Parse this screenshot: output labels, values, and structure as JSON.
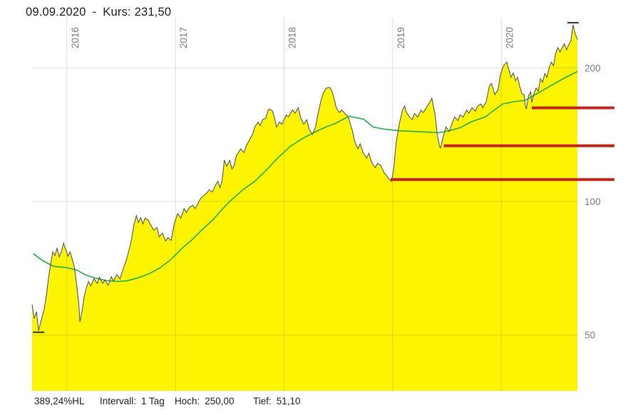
{
  "header": {
    "date": "09.09.2020",
    "dash": "-",
    "kurs_label": "Kurs:",
    "kurs_value": "231,50"
  },
  "statusbar": {
    "range_pct": "389,24%HL",
    "interval_label": "Intervall:",
    "interval_value": "1 Tag",
    "high_label": "Hoch:",
    "high_value": "250,00",
    "low_label": "Tief:",
    "low_value": "51,10"
  },
  "colors": {
    "background": "#ffffff",
    "area_fill": "#fcf400",
    "price_line": "#4d4d4d",
    "ma_line": "#2bad4d",
    "support_line": "#c1271f",
    "grid": "rgba(0,0,0,0.13)",
    "axis_text": "#7f7f7f",
    "heading_text": "#21242e",
    "marker_tick": "#333333"
  },
  "chart_data": {
    "type": "area",
    "title": "09.09.2020 - Kurs: 231,50",
    "xlabel": "",
    "ylabel": "",
    "grid": true,
    "legend": "none",
    "x_axis": {
      "scale": "linear-time-years",
      "range": [
        2015.68,
        2020.7
      ],
      "ticks": [
        2016,
        2017,
        2018,
        2019,
        2020
      ],
      "tick_labels": [
        "2016",
        "2017",
        "2018",
        "2019",
        "2020"
      ]
    },
    "y_axis": {
      "scale": "log",
      "side": "right",
      "range": [
        37,
        262
      ],
      "ticks": [
        200,
        100,
        50
      ],
      "tick_labels": [
        "200",
        "100",
        "50"
      ]
    },
    "series": [
      {
        "name": "price",
        "type": "area",
        "points": [
          [
            2015.68,
            58.6
          ],
          [
            2015.7,
            54.5
          ],
          [
            2015.72,
            56.5
          ],
          [
            2015.74,
            51.1
          ],
          [
            2015.76,
            53.5
          ],
          [
            2015.79,
            57.0
          ],
          [
            2015.81,
            61.0
          ],
          [
            2015.83,
            67.0
          ],
          [
            2015.85,
            72.0
          ],
          [
            2015.87,
            77.0
          ],
          [
            2015.89,
            75.5
          ],
          [
            2015.91,
            78.4
          ],
          [
            2015.93,
            75.0
          ],
          [
            2015.95,
            77.0
          ],
          [
            2015.97,
            80.5
          ],
          [
            2015.99,
            78.0
          ],
          [
            2016.01,
            75.3
          ],
          [
            2016.03,
            77.0
          ],
          [
            2016.05,
            74.0
          ],
          [
            2016.07,
            71.0
          ],
          [
            2016.09,
            65.0
          ],
          [
            2016.11,
            59.0
          ],
          [
            2016.12,
            53.5
          ],
          [
            2016.14,
            56.6
          ],
          [
            2016.16,
            61.0
          ],
          [
            2016.18,
            64.0
          ],
          [
            2016.2,
            66.0
          ],
          [
            2016.22,
            64.5
          ],
          [
            2016.25,
            67.0
          ],
          [
            2016.28,
            65.4
          ],
          [
            2016.3,
            67.5
          ],
          [
            2016.33,
            65.4
          ],
          [
            2016.35,
            66.6
          ],
          [
            2016.38,
            64.7
          ],
          [
            2016.41,
            67.7
          ],
          [
            2016.43,
            66.2
          ],
          [
            2016.46,
            68.4
          ],
          [
            2016.49,
            66.9
          ],
          [
            2016.51,
            69.5
          ],
          [
            2016.54,
            72.9
          ],
          [
            2016.56,
            75.7
          ],
          [
            2016.59,
            80.8
          ],
          [
            2016.62,
            89.0
          ],
          [
            2016.64,
            93.0
          ],
          [
            2016.66,
            89.6
          ],
          [
            2016.68,
            92.0
          ],
          [
            2016.7,
            89.0
          ],
          [
            2016.72,
            91.7
          ],
          [
            2016.75,
            90.7
          ],
          [
            2016.77,
            88.7
          ],
          [
            2016.8,
            86.1
          ],
          [
            2016.83,
            87.4
          ],
          [
            2016.85,
            83.2
          ],
          [
            2016.88,
            84.8
          ],
          [
            2016.91,
            81.4
          ],
          [
            2016.93,
            82.9
          ],
          [
            2016.96,
            81.7
          ],
          [
            2016.99,
            89.3
          ],
          [
            2017.02,
            93.9
          ],
          [
            2017.05,
            91.7
          ],
          [
            2017.08,
            96.3
          ],
          [
            2017.1,
            94.5
          ],
          [
            2017.13,
            97.0
          ],
          [
            2017.16,
            98.1
          ],
          [
            2017.18,
            96.3
          ],
          [
            2017.21,
            99.2
          ],
          [
            2017.23,
            101.5
          ],
          [
            2017.26,
            103.0
          ],
          [
            2017.29,
            104.6
          ],
          [
            2017.31,
            106.2
          ],
          [
            2017.34,
            105.0
          ],
          [
            2017.37,
            109.0
          ],
          [
            2017.39,
            111.0
          ],
          [
            2017.41,
            107.4
          ],
          [
            2017.43,
            111.9
          ],
          [
            2017.45,
            124.0
          ],
          [
            2017.47,
            120.1
          ],
          [
            2017.5,
            123.8
          ],
          [
            2017.52,
            118.3
          ],
          [
            2017.54,
            120.6
          ],
          [
            2017.56,
            126.6
          ],
          [
            2017.58,
            128.9
          ],
          [
            2017.6,
            131.4
          ],
          [
            2017.63,
            128.9
          ],
          [
            2017.65,
            133.3
          ],
          [
            2017.67,
            135.9
          ],
          [
            2017.69,
            139.0
          ],
          [
            2017.71,
            141.6
          ],
          [
            2017.73,
            147.1
          ],
          [
            2017.76,
            151.0
          ],
          [
            2017.78,
            148.2
          ],
          [
            2017.8,
            152.8
          ],
          [
            2017.83,
            153.8
          ],
          [
            2017.85,
            159.7
          ],
          [
            2017.86,
            161.5
          ],
          [
            2017.89,
            160.3
          ],
          [
            2017.91,
            155.0
          ],
          [
            2017.93,
            147.1
          ],
          [
            2017.96,
            151.0
          ],
          [
            2017.98,
            149.3
          ],
          [
            2018.0,
            152.8
          ],
          [
            2018.02,
            156.7
          ],
          [
            2018.04,
            155.0
          ],
          [
            2018.06,
            158.5
          ],
          [
            2018.08,
            160.8
          ],
          [
            2018.1,
            157.9
          ],
          [
            2018.13,
            162.7
          ],
          [
            2018.15,
            155.0
          ],
          [
            2018.18,
            149.3
          ],
          [
            2018.21,
            152.8
          ],
          [
            2018.23,
            145.4
          ],
          [
            2018.26,
            141.6
          ],
          [
            2018.29,
            147.1
          ],
          [
            2018.31,
            156.7
          ],
          [
            2018.34,
            169.0
          ],
          [
            2018.36,
            175.4
          ],
          [
            2018.39,
            180.1
          ],
          [
            2018.42,
            180.7
          ],
          [
            2018.44,
            177.4
          ],
          [
            2018.46,
            170.9
          ],
          [
            2018.48,
            162.7
          ],
          [
            2018.51,
            158.5
          ],
          [
            2018.53,
            160.8
          ],
          [
            2018.56,
            157.9
          ],
          [
            2018.59,
            155.0
          ],
          [
            2018.6,
            152.1
          ],
          [
            2018.63,
            143.8
          ],
          [
            2018.65,
            136.5
          ],
          [
            2018.68,
            131.4
          ],
          [
            2018.7,
            134.9
          ],
          [
            2018.73,
            128.4
          ],
          [
            2018.76,
            125.2
          ],
          [
            2018.78,
            128.4
          ],
          [
            2018.81,
            121.9
          ],
          [
            2018.84,
            119.2
          ],
          [
            2018.86,
            121.9
          ],
          [
            2018.89,
            120.6
          ],
          [
            2018.92,
            116.1
          ],
          [
            2018.94,
            114.8
          ],
          [
            2018.97,
            111.9
          ],
          [
            2018.99,
            111.0
          ],
          [
            2019.01,
            119.2
          ],
          [
            2019.03,
            134.9
          ],
          [
            2019.06,
            149.3
          ],
          [
            2019.09,
            160.8
          ],
          [
            2019.11,
            164.2
          ],
          [
            2019.12,
            159.7
          ],
          [
            2019.15,
            155.6
          ],
          [
            2019.18,
            152.8
          ],
          [
            2019.2,
            157.9
          ],
          [
            2019.23,
            155.0
          ],
          [
            2019.26,
            160.8
          ],
          [
            2019.28,
            158.5
          ],
          [
            2019.31,
            162.7
          ],
          [
            2019.34,
            167.1
          ],
          [
            2019.36,
            170.9
          ],
          [
            2019.39,
            156.7
          ],
          [
            2019.41,
            141.6
          ],
          [
            2019.43,
            133.3
          ],
          [
            2019.44,
            131.9
          ],
          [
            2019.47,
            141.6
          ],
          [
            2019.49,
            147.1
          ],
          [
            2019.52,
            143.8
          ],
          [
            2019.55,
            151.0
          ],
          [
            2019.57,
            155.0
          ],
          [
            2019.6,
            152.1
          ],
          [
            2019.62,
            156.7
          ],
          [
            2019.65,
            155.0
          ],
          [
            2019.68,
            160.8
          ],
          [
            2019.7,
            157.9
          ],
          [
            2019.73,
            162.7
          ],
          [
            2019.76,
            159.7
          ],
          [
            2019.78,
            163.9
          ],
          [
            2019.81,
            165.8
          ],
          [
            2019.83,
            162.7
          ],
          [
            2019.86,
            167.7
          ],
          [
            2019.89,
            182.1
          ],
          [
            2019.91,
            184.4
          ],
          [
            2019.94,
            174.0
          ],
          [
            2019.97,
            178.7
          ],
          [
            2019.99,
            192.6
          ],
          [
            2020.02,
            202.3
          ],
          [
            2020.05,
            206.1
          ],
          [
            2020.07,
            197.7
          ],
          [
            2020.09,
            190.5
          ],
          [
            2020.11,
            194.8
          ],
          [
            2020.13,
            187.0
          ],
          [
            2020.15,
            190.5
          ],
          [
            2020.17,
            181.4
          ],
          [
            2020.19,
            174.7
          ],
          [
            2020.21,
            174.0
          ],
          [
            2020.22,
            164.2
          ],
          [
            2020.23,
            161.5
          ],
          [
            2020.25,
            172.7
          ],
          [
            2020.27,
            176.7
          ],
          [
            2020.28,
            167.1
          ],
          [
            2020.3,
            174.7
          ],
          [
            2020.32,
            180.1
          ],
          [
            2020.34,
            177.4
          ],
          [
            2020.36,
            189.1
          ],
          [
            2020.38,
            185.6
          ],
          [
            2020.4,
            194.1
          ],
          [
            2020.42,
            190.5
          ],
          [
            2020.44,
            200.0
          ],
          [
            2020.46,
            206.1
          ],
          [
            2020.48,
            202.3
          ],
          [
            2020.5,
            215.5
          ],
          [
            2020.52,
            222.1
          ],
          [
            2020.54,
            217.2
          ],
          [
            2020.56,
            222.1
          ],
          [
            2020.58,
            226.4
          ],
          [
            2020.6,
            219.6
          ],
          [
            2020.62,
            225.5
          ],
          [
            2020.64,
            229.8
          ],
          [
            2020.66,
            250.0
          ],
          [
            2020.68,
            238.7
          ],
          [
            2020.7,
            231.5
          ]
        ]
      },
      {
        "name": "moving-average",
        "type": "line",
        "points": [
          [
            2015.69,
            76.3
          ],
          [
            2015.78,
            73.5
          ],
          [
            2015.88,
            71.4
          ],
          [
            2016.0,
            70.9
          ],
          [
            2016.09,
            70.1
          ],
          [
            2016.17,
            68.3
          ],
          [
            2016.27,
            67.1
          ],
          [
            2016.37,
            66.3
          ],
          [
            2016.47,
            66.0
          ],
          [
            2016.56,
            66.3
          ],
          [
            2016.66,
            67.3
          ],
          [
            2016.76,
            68.8
          ],
          [
            2016.86,
            70.9
          ],
          [
            2016.96,
            74.1
          ],
          [
            2017.06,
            78.4
          ],
          [
            2017.16,
            82.3
          ],
          [
            2017.24,
            86.1
          ],
          [
            2017.34,
            90.7
          ],
          [
            2017.43,
            96.0
          ],
          [
            2017.5,
            100.0
          ],
          [
            2017.62,
            106.2
          ],
          [
            2017.73,
            111.0
          ],
          [
            2017.83,
            117.2
          ],
          [
            2017.94,
            125.2
          ],
          [
            2018.06,
            133.3
          ],
          [
            2018.17,
            138.7
          ],
          [
            2018.27,
            142.8
          ],
          [
            2018.37,
            146.6
          ],
          [
            2018.47,
            149.9
          ],
          [
            2018.6,
            155.6
          ],
          [
            2018.73,
            153.3
          ],
          [
            2018.82,
            147.1
          ],
          [
            2018.93,
            145.4
          ],
          [
            2019.06,
            144.3
          ],
          [
            2019.19,
            143.8
          ],
          [
            2019.32,
            143.3
          ],
          [
            2019.42,
            142.8
          ],
          [
            2019.52,
            144.3
          ],
          [
            2019.62,
            146.6
          ],
          [
            2019.72,
            151.0
          ],
          [
            2019.85,
            155.0
          ],
          [
            2020.01,
            165.8
          ],
          [
            2020.11,
            167.7
          ],
          [
            2020.22,
            169.0
          ],
          [
            2020.37,
            177.4
          ],
          [
            2020.57,
            189.1
          ],
          [
            2020.7,
            196.3
          ]
        ]
      }
    ],
    "support_lines": [
      {
        "price": 162.5,
        "t_start": 2020.28,
        "t_end": 2021.04
      },
      {
        "price": 133.5,
        "t_start": 2019.47,
        "t_end": 2021.04
      },
      {
        "price": 112.0,
        "t_start": 2018.98,
        "t_end": 2021.04
      }
    ],
    "markers": [
      {
        "name": "high-tick",
        "t": 2020.66,
        "price": 250.0
      },
      {
        "name": "low-tick",
        "t": 2015.74,
        "price": 51.1
      }
    ]
  }
}
